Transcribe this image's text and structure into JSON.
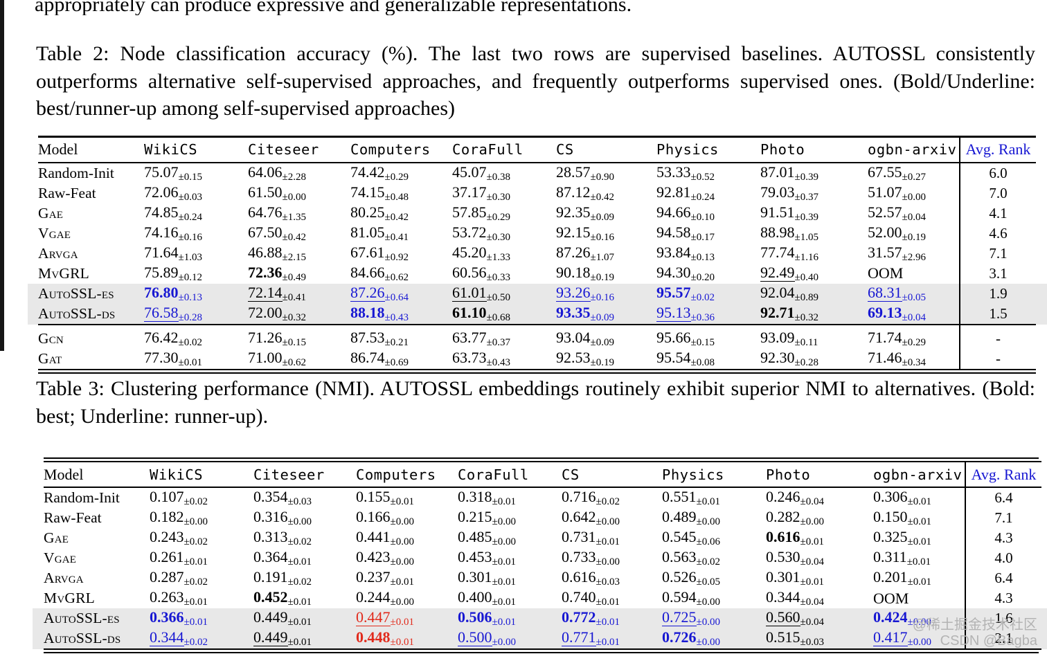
{
  "page": {
    "top_text": "appropriately can produce expressive and generalizable representations.",
    "watermark": {
      "line1": "@稀土掘金技术社区",
      "line2": "CSDN @Bagba"
    }
  },
  "colors": {
    "accent_blue": "#1717d2",
    "accent_red": "#e12a1b",
    "highlight_bg": "#e8e8e8",
    "rule_black": "#000000",
    "watermark_gray": "#b3b3b3"
  },
  "legend": {
    "table2_formatting": "Bold/Underline: best/runner-up among self-supervised approaches",
    "table3_formatting": "Bold: best; Underline: runner-up"
  },
  "tables": [
    {
      "id": "table-2",
      "caption": "Table 2: Node classification accuracy (%). The last two rows are supervised baselines. AUTOSSL consistently outperforms alternative self-supervised approaches, and frequently outperforms supervised ones. (Bold/Underline: best/runner-up among self-supervised approaches)",
      "columns": [
        "Model",
        "WikiCS",
        "Citeseer",
        "Computers",
        "CoraFull",
        "CS",
        "Physics",
        "Photo",
        "ogbn-arxiv"
      ],
      "rank_header": "Avg. Rank",
      "rows": [
        {
          "name": "Random-Init",
          "sc": false,
          "hl": false,
          "sep": false,
          "rank": "6.0",
          "cells": [
            [
              "75.07",
              "0.15",
              ""
            ],
            [
              "64.06",
              "2.28",
              ""
            ],
            [
              "74.42",
              "0.29",
              ""
            ],
            [
              "45.07",
              "0.38",
              ""
            ],
            [
              "28.57",
              "0.90",
              ""
            ],
            [
              "53.33",
              "0.52",
              ""
            ],
            [
              "87.01",
              "0.39",
              ""
            ],
            [
              "67.55",
              "0.27",
              ""
            ]
          ]
        },
        {
          "name": "Raw-Feat",
          "sc": false,
          "hl": false,
          "sep": false,
          "rank": "7.0",
          "cells": [
            [
              "72.06",
              "0.03",
              ""
            ],
            [
              "61.50",
              "0.00",
              ""
            ],
            [
              "74.15",
              "0.48",
              ""
            ],
            [
              "37.17",
              "0.30",
              ""
            ],
            [
              "87.12",
              "0.42",
              ""
            ],
            [
              "92.81",
              "0.24",
              ""
            ],
            [
              "79.03",
              "0.37",
              ""
            ],
            [
              "51.07",
              "0.00",
              ""
            ]
          ]
        },
        {
          "name": "GAE",
          "display": "Gae",
          "sc": true,
          "hl": false,
          "sep": false,
          "rank": "4.1",
          "cells": [
            [
              "74.85",
              "0.24",
              ""
            ],
            [
              "64.76",
              "1.35",
              ""
            ],
            [
              "80.25",
              "0.42",
              ""
            ],
            [
              "57.85",
              "0.29",
              ""
            ],
            [
              "92.35",
              "0.09",
              ""
            ],
            [
              "94.66",
              "0.10",
              ""
            ],
            [
              "91.51",
              "0.39",
              ""
            ],
            [
              "52.57",
              "0.04",
              ""
            ]
          ]
        },
        {
          "name": "VGAE",
          "display": "Vgae",
          "sc": true,
          "hl": false,
          "sep": false,
          "rank": "4.6",
          "cells": [
            [
              "74.16",
              "0.16",
              ""
            ],
            [
              "67.50",
              "0.42",
              ""
            ],
            [
              "81.05",
              "0.41",
              ""
            ],
            [
              "53.72",
              "0.30",
              ""
            ],
            [
              "92.15",
              "0.16",
              ""
            ],
            [
              "94.58",
              "0.17",
              ""
            ],
            [
              "88.98",
              "1.05",
              ""
            ],
            [
              "52.00",
              "0.19",
              ""
            ]
          ]
        },
        {
          "name": "ARVGA",
          "display": "Arvga",
          "sc": true,
          "hl": false,
          "sep": false,
          "rank": "7.1",
          "cells": [
            [
              "71.64",
              "1.03",
              ""
            ],
            [
              "46.88",
              "2.15",
              ""
            ],
            [
              "67.61",
              "0.92",
              ""
            ],
            [
              "45.20",
              "1.33",
              ""
            ],
            [
              "87.26",
              "1.07",
              ""
            ],
            [
              "93.84",
              "0.13",
              ""
            ],
            [
              "77.74",
              "1.16",
              ""
            ],
            [
              "31.57",
              "2.96",
              ""
            ]
          ]
        },
        {
          "name": "MVGRL",
          "display": "MvGRL",
          "sc": true,
          "hl": false,
          "sep": false,
          "rank": "3.1",
          "cells": [
            [
              "75.89",
              "0.12",
              ""
            ],
            [
              "72.36",
              "0.49",
              "b"
            ],
            [
              "84.66",
              "0.62",
              ""
            ],
            [
              "60.56",
              "0.33",
              ""
            ],
            [
              "90.18",
              "0.19",
              ""
            ],
            [
              "94.30",
              "0.20",
              ""
            ],
            [
              "92.49",
              "0.40",
              "u"
            ],
            [
              "OOM",
              "",
              ""
            ]
          ]
        },
        {
          "name": "AUTOSSL-ES",
          "display": "AutoSSL-es",
          "sc": true,
          "hl": true,
          "sep": false,
          "rank": "1.9",
          "cells": [
            [
              "76.80",
              "0.13",
              "bB"
            ],
            [
              "72.14",
              "0.41",
              "u"
            ],
            [
              "87.26",
              "0.64",
              "uB"
            ],
            [
              "61.01",
              "0.50",
              "u"
            ],
            [
              "93.26",
              "0.16",
              "uB"
            ],
            [
              "95.57",
              "0.02",
              "bB"
            ],
            [
              "92.04",
              "0.89",
              ""
            ],
            [
              "68.31",
              "0.05",
              "uB"
            ]
          ]
        },
        {
          "name": "AUTOSSL-DS",
          "display": "AutoSSL-ds",
          "sc": true,
          "hl": true,
          "sep": false,
          "rank": "1.5",
          "cells": [
            [
              "76.58",
              "0.28",
              "uB"
            ],
            [
              "72.00",
              "0.32",
              ""
            ],
            [
              "88.18",
              "0.43",
              "bB"
            ],
            [
              "61.10",
              "0.68",
              "b"
            ],
            [
              "93.35",
              "0.09",
              "bB"
            ],
            [
              "95.13",
              "0.36",
              "uB"
            ],
            [
              "92.71",
              "0.32",
              "b"
            ],
            [
              "69.13",
              "0.04",
              "bB"
            ]
          ]
        },
        {
          "name": "GCN",
          "display": "Gcn",
          "sc": true,
          "hl": false,
          "sep": true,
          "rank": "-",
          "cells": [
            [
              "76.42",
              "0.02",
              ""
            ],
            [
              "71.26",
              "0.15",
              ""
            ],
            [
              "87.53",
              "0.21",
              ""
            ],
            [
              "63.77",
              "0.37",
              ""
            ],
            [
              "93.04",
              "0.09",
              ""
            ],
            [
              "95.66",
              "0.15",
              ""
            ],
            [
              "93.09",
              "0.11",
              ""
            ],
            [
              "71.74",
              "0.29",
              ""
            ]
          ]
        },
        {
          "name": "GAT",
          "display": "Gat",
          "sc": true,
          "hl": false,
          "sep": false,
          "rank": "-",
          "cells": [
            [
              "77.30",
              "0.01",
              ""
            ],
            [
              "71.00",
              "0.62",
              ""
            ],
            [
              "86.74",
              "0.69",
              ""
            ],
            [
              "63.73",
              "0.43",
              ""
            ],
            [
              "92.53",
              "0.19",
              ""
            ],
            [
              "95.54",
              "0.08",
              ""
            ],
            [
              "92.30",
              "0.28",
              ""
            ],
            [
              "71.46",
              "0.34",
              ""
            ]
          ]
        }
      ]
    },
    {
      "id": "table-3",
      "caption": "Table 3: Clustering performance (NMI). AUTOSSL embeddings routinely exhibit superior NMI to alternatives. (Bold: best; Underline: runner-up).",
      "columns": [
        "Model",
        "WikiCS",
        "Citeseer",
        "Computers",
        "CoraFull",
        "CS",
        "Physics",
        "Photo",
        "ogbn-arxiv"
      ],
      "rank_header": "Avg. Rank",
      "rows": [
        {
          "name": "Random-Init",
          "sc": false,
          "hl": false,
          "sep": false,
          "rank": "6.4",
          "cells": [
            [
              "0.107",
              "0.02",
              ""
            ],
            [
              "0.354",
              "0.03",
              ""
            ],
            [
              "0.155",
              "0.01",
              ""
            ],
            [
              "0.318",
              "0.01",
              ""
            ],
            [
              "0.716",
              "0.02",
              ""
            ],
            [
              "0.551",
              "0.01",
              ""
            ],
            [
              "0.246",
              "0.04",
              ""
            ],
            [
              "0.306",
              "0.01",
              ""
            ]
          ]
        },
        {
          "name": "Raw-Feat",
          "sc": false,
          "hl": false,
          "sep": false,
          "rank": "7.1",
          "cells": [
            [
              "0.182",
              "0.00",
              ""
            ],
            [
              "0.316",
              "0.00",
              ""
            ],
            [
              "0.166",
              "0.00",
              ""
            ],
            [
              "0.215",
              "0.00",
              ""
            ],
            [
              "0.642",
              "0.00",
              ""
            ],
            [
              "0.489",
              "0.00",
              ""
            ],
            [
              "0.282",
              "0.00",
              ""
            ],
            [
              "0.150",
              "0.01",
              ""
            ]
          ]
        },
        {
          "name": "GAE",
          "display": "Gae",
          "sc": true,
          "hl": false,
          "sep": false,
          "rank": "4.3",
          "cells": [
            [
              "0.243",
              "0.02",
              ""
            ],
            [
              "0.313",
              "0.02",
              ""
            ],
            [
              "0.441",
              "0.00",
              ""
            ],
            [
              "0.485",
              "0.00",
              ""
            ],
            [
              "0.731",
              "0.01",
              ""
            ],
            [
              "0.545",
              "0.06",
              ""
            ],
            [
              "0.616",
              "0.01",
              "b"
            ],
            [
              "0.325",
              "0.01",
              ""
            ]
          ]
        },
        {
          "name": "VGAE",
          "display": "Vgae",
          "sc": true,
          "hl": false,
          "sep": false,
          "rank": "4.0",
          "cells": [
            [
              "0.261",
              "0.01",
              ""
            ],
            [
              "0.364",
              "0.01",
              ""
            ],
            [
              "0.423",
              "0.00",
              ""
            ],
            [
              "0.453",
              "0.01",
              ""
            ],
            [
              "0.733",
              "0.00",
              ""
            ],
            [
              "0.563",
              "0.02",
              ""
            ],
            [
              "0.530",
              "0.04",
              ""
            ],
            [
              "0.311",
              "0.01",
              ""
            ]
          ]
        },
        {
          "name": "ARVGA",
          "display": "Arvga",
          "sc": true,
          "hl": false,
          "sep": false,
          "rank": "6.4",
          "cells": [
            [
              "0.287",
              "0.02",
              ""
            ],
            [
              "0.191",
              "0.02",
              ""
            ],
            [
              "0.237",
              "0.01",
              ""
            ],
            [
              "0.301",
              "0.01",
              ""
            ],
            [
              "0.616",
              "0.03",
              ""
            ],
            [
              "0.526",
              "0.05",
              ""
            ],
            [
              "0.301",
              "0.01",
              ""
            ],
            [
              "0.201",
              "0.01",
              ""
            ]
          ]
        },
        {
          "name": "MVGRL",
          "display": "MvGRL",
          "sc": true,
          "hl": false,
          "sep": false,
          "rank": "4.3",
          "cells": [
            [
              "0.263",
              "0.01",
              ""
            ],
            [
              "0.452",
              "0.01",
              "b"
            ],
            [
              "0.244",
              "0.00",
              ""
            ],
            [
              "0.400",
              "0.01",
              ""
            ],
            [
              "0.740",
              "0.01",
              ""
            ],
            [
              "0.594",
              "0.00",
              ""
            ],
            [
              "0.344",
              "0.04",
              ""
            ],
            [
              "OOM",
              "",
              ""
            ]
          ]
        },
        {
          "name": "AUTOSSL-ES",
          "display": "AutoSSL-es",
          "sc": true,
          "hl": true,
          "sep": false,
          "rank": "1.6",
          "cells": [
            [
              "0.366",
              "0.01",
              "bB"
            ],
            [
              "0.449",
              "0.01",
              ""
            ],
            [
              "0.447",
              "0.01",
              "uR"
            ],
            [
              "0.506",
              "0.01",
              "bB"
            ],
            [
              "0.772",
              "0.01",
              "bB"
            ],
            [
              "0.725",
              "0.00",
              "uB"
            ],
            [
              "0.560",
              "0.04",
              "u"
            ],
            [
              "0.424",
              "0.00",
              "bB"
            ]
          ]
        },
        {
          "name": "AUTOSSL-DS",
          "display": "AutoSSL-ds",
          "sc": true,
          "hl": true,
          "sep": false,
          "rank": "2.1",
          "cells": [
            [
              "0.344",
              "0.02",
              "uB"
            ],
            [
              "0.449",
              "0.01",
              "u"
            ],
            [
              "0.448",
              "0.01",
              "bR"
            ],
            [
              "0.500",
              "0.00",
              "uB"
            ],
            [
              "0.771",
              "0.01",
              "uB"
            ],
            [
              "0.726",
              "0.00",
              "bB"
            ],
            [
              "0.515",
              "0.03",
              ""
            ],
            [
              "0.417",
              "0.00",
              "uB"
            ]
          ]
        }
      ]
    }
  ]
}
